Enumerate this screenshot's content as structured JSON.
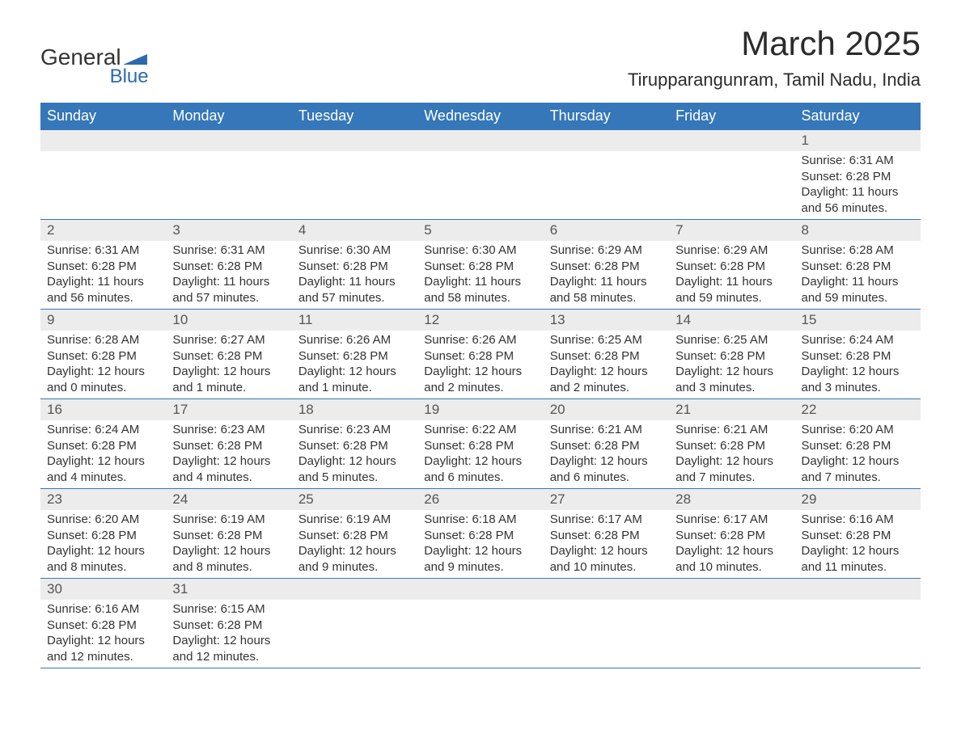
{
  "header": {
    "logo_general": "General",
    "logo_blue": "Blue",
    "title": "March 2025",
    "subtitle": "Tirupparangunram, Tamil Nadu, India"
  },
  "colors": {
    "header_bg": "#3577b8",
    "header_text": "#ffffff",
    "day_band_bg": "#ececec",
    "day_text": "#333333",
    "border": "#3577b8",
    "logo_blue": "#2d6aad"
  },
  "weekdays": [
    "Sunday",
    "Monday",
    "Tuesday",
    "Wednesday",
    "Thursday",
    "Friday",
    "Saturday"
  ],
  "weeks": [
    [
      {
        "empty": true
      },
      {
        "empty": true
      },
      {
        "empty": true
      },
      {
        "empty": true
      },
      {
        "empty": true
      },
      {
        "empty": true
      },
      {
        "day": "1",
        "sunrise": "Sunrise: 6:31 AM",
        "sunset": "Sunset: 6:28 PM",
        "daylight1": "Daylight: 11 hours",
        "daylight2": "and 56 minutes."
      }
    ],
    [
      {
        "day": "2",
        "sunrise": "Sunrise: 6:31 AM",
        "sunset": "Sunset: 6:28 PM",
        "daylight1": "Daylight: 11 hours",
        "daylight2": "and 56 minutes."
      },
      {
        "day": "3",
        "sunrise": "Sunrise: 6:31 AM",
        "sunset": "Sunset: 6:28 PM",
        "daylight1": "Daylight: 11 hours",
        "daylight2": "and 57 minutes."
      },
      {
        "day": "4",
        "sunrise": "Sunrise: 6:30 AM",
        "sunset": "Sunset: 6:28 PM",
        "daylight1": "Daylight: 11 hours",
        "daylight2": "and 57 minutes."
      },
      {
        "day": "5",
        "sunrise": "Sunrise: 6:30 AM",
        "sunset": "Sunset: 6:28 PM",
        "daylight1": "Daylight: 11 hours",
        "daylight2": "and 58 minutes."
      },
      {
        "day": "6",
        "sunrise": "Sunrise: 6:29 AM",
        "sunset": "Sunset: 6:28 PM",
        "daylight1": "Daylight: 11 hours",
        "daylight2": "and 58 minutes."
      },
      {
        "day": "7",
        "sunrise": "Sunrise: 6:29 AM",
        "sunset": "Sunset: 6:28 PM",
        "daylight1": "Daylight: 11 hours",
        "daylight2": "and 59 minutes."
      },
      {
        "day": "8",
        "sunrise": "Sunrise: 6:28 AM",
        "sunset": "Sunset: 6:28 PM",
        "daylight1": "Daylight: 11 hours",
        "daylight2": "and 59 minutes."
      }
    ],
    [
      {
        "day": "9",
        "sunrise": "Sunrise: 6:28 AM",
        "sunset": "Sunset: 6:28 PM",
        "daylight1": "Daylight: 12 hours",
        "daylight2": "and 0 minutes."
      },
      {
        "day": "10",
        "sunrise": "Sunrise: 6:27 AM",
        "sunset": "Sunset: 6:28 PM",
        "daylight1": "Daylight: 12 hours",
        "daylight2": "and 1 minute."
      },
      {
        "day": "11",
        "sunrise": "Sunrise: 6:26 AM",
        "sunset": "Sunset: 6:28 PM",
        "daylight1": "Daylight: 12 hours",
        "daylight2": "and 1 minute."
      },
      {
        "day": "12",
        "sunrise": "Sunrise: 6:26 AM",
        "sunset": "Sunset: 6:28 PM",
        "daylight1": "Daylight: 12 hours",
        "daylight2": "and 2 minutes."
      },
      {
        "day": "13",
        "sunrise": "Sunrise: 6:25 AM",
        "sunset": "Sunset: 6:28 PM",
        "daylight1": "Daylight: 12 hours",
        "daylight2": "and 2 minutes."
      },
      {
        "day": "14",
        "sunrise": "Sunrise: 6:25 AM",
        "sunset": "Sunset: 6:28 PM",
        "daylight1": "Daylight: 12 hours",
        "daylight2": "and 3 minutes."
      },
      {
        "day": "15",
        "sunrise": "Sunrise: 6:24 AM",
        "sunset": "Sunset: 6:28 PM",
        "daylight1": "Daylight: 12 hours",
        "daylight2": "and 3 minutes."
      }
    ],
    [
      {
        "day": "16",
        "sunrise": "Sunrise: 6:24 AM",
        "sunset": "Sunset: 6:28 PM",
        "daylight1": "Daylight: 12 hours",
        "daylight2": "and 4 minutes."
      },
      {
        "day": "17",
        "sunrise": "Sunrise: 6:23 AM",
        "sunset": "Sunset: 6:28 PM",
        "daylight1": "Daylight: 12 hours",
        "daylight2": "and 4 minutes."
      },
      {
        "day": "18",
        "sunrise": "Sunrise: 6:23 AM",
        "sunset": "Sunset: 6:28 PM",
        "daylight1": "Daylight: 12 hours",
        "daylight2": "and 5 minutes."
      },
      {
        "day": "19",
        "sunrise": "Sunrise: 6:22 AM",
        "sunset": "Sunset: 6:28 PM",
        "daylight1": "Daylight: 12 hours",
        "daylight2": "and 6 minutes."
      },
      {
        "day": "20",
        "sunrise": "Sunrise: 6:21 AM",
        "sunset": "Sunset: 6:28 PM",
        "daylight1": "Daylight: 12 hours",
        "daylight2": "and 6 minutes."
      },
      {
        "day": "21",
        "sunrise": "Sunrise: 6:21 AM",
        "sunset": "Sunset: 6:28 PM",
        "daylight1": "Daylight: 12 hours",
        "daylight2": "and 7 minutes."
      },
      {
        "day": "22",
        "sunrise": "Sunrise: 6:20 AM",
        "sunset": "Sunset: 6:28 PM",
        "daylight1": "Daylight: 12 hours",
        "daylight2": "and 7 minutes."
      }
    ],
    [
      {
        "day": "23",
        "sunrise": "Sunrise: 6:20 AM",
        "sunset": "Sunset: 6:28 PM",
        "daylight1": "Daylight: 12 hours",
        "daylight2": "and 8 minutes."
      },
      {
        "day": "24",
        "sunrise": "Sunrise: 6:19 AM",
        "sunset": "Sunset: 6:28 PM",
        "daylight1": "Daylight: 12 hours",
        "daylight2": "and 8 minutes."
      },
      {
        "day": "25",
        "sunrise": "Sunrise: 6:19 AM",
        "sunset": "Sunset: 6:28 PM",
        "daylight1": "Daylight: 12 hours",
        "daylight2": "and 9 minutes."
      },
      {
        "day": "26",
        "sunrise": "Sunrise: 6:18 AM",
        "sunset": "Sunset: 6:28 PM",
        "daylight1": "Daylight: 12 hours",
        "daylight2": "and 9 minutes."
      },
      {
        "day": "27",
        "sunrise": "Sunrise: 6:17 AM",
        "sunset": "Sunset: 6:28 PM",
        "daylight1": "Daylight: 12 hours",
        "daylight2": "and 10 minutes."
      },
      {
        "day": "28",
        "sunrise": "Sunrise: 6:17 AM",
        "sunset": "Sunset: 6:28 PM",
        "daylight1": "Daylight: 12 hours",
        "daylight2": "and 10 minutes."
      },
      {
        "day": "29",
        "sunrise": "Sunrise: 6:16 AM",
        "sunset": "Sunset: 6:28 PM",
        "daylight1": "Daylight: 12 hours",
        "daylight2": "and 11 minutes."
      }
    ],
    [
      {
        "day": "30",
        "sunrise": "Sunrise: 6:16 AM",
        "sunset": "Sunset: 6:28 PM",
        "daylight1": "Daylight: 12 hours",
        "daylight2": "and 12 minutes."
      },
      {
        "day": "31",
        "sunrise": "Sunrise: 6:15 AM",
        "sunset": "Sunset: 6:28 PM",
        "daylight1": "Daylight: 12 hours",
        "daylight2": "and 12 minutes."
      },
      {
        "empty": true
      },
      {
        "empty": true
      },
      {
        "empty": true
      },
      {
        "empty": true
      },
      {
        "empty": true
      }
    ]
  ]
}
